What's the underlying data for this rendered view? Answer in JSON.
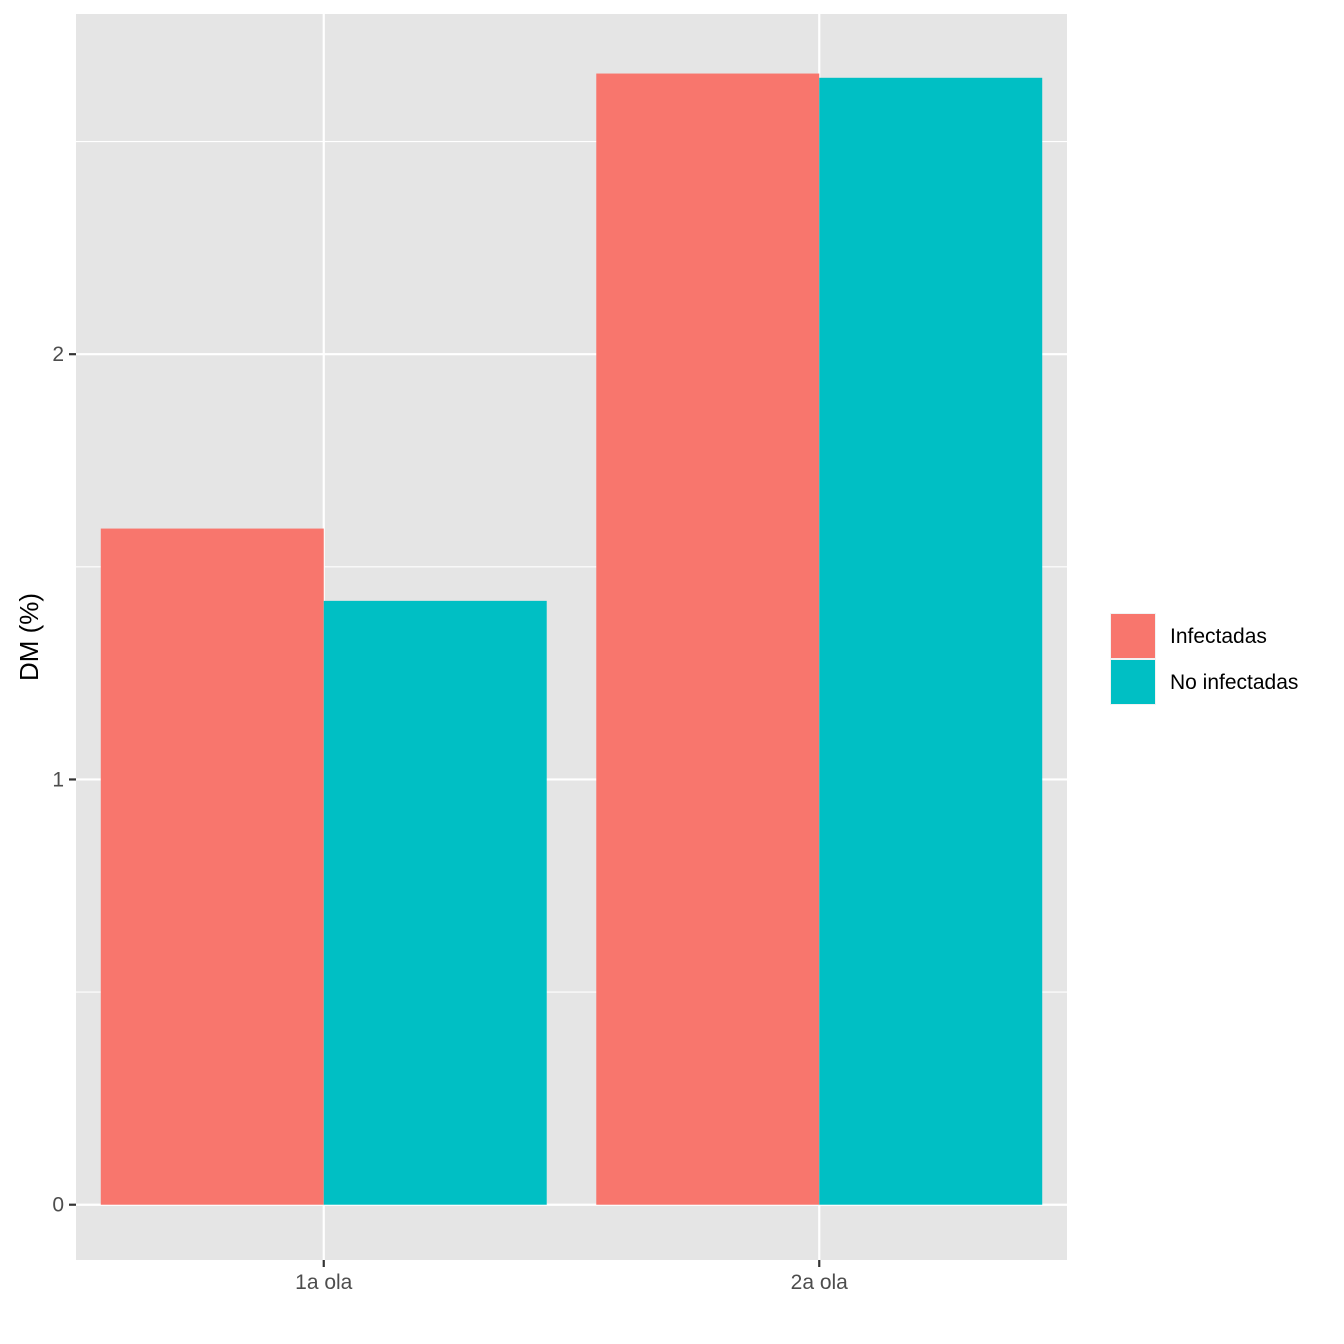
{
  "chart_data": {
    "type": "bar",
    "title": "",
    "xlabel": "",
    "ylabel": "DM (%)",
    "categories": [
      "1a ola",
      "2a ola"
    ],
    "series": [
      {
        "name": "Infectadas",
        "color": "#F8766D",
        "values": [
          1.59,
          2.66
        ]
      },
      {
        "name": "No infectadas",
        "color": "#00BFC4",
        "values": [
          1.42,
          2.65
        ]
      }
    ],
    "ylim": [
      -0.13,
      2.8
    ],
    "yticks": [
      0,
      1,
      2
    ],
    "yticks_minor": [
      0.5,
      1.5,
      2.5
    ],
    "grid": true,
    "legend_position": "right",
    "colors": {
      "panel_background": "#E5E5E5",
      "grid_line": "#FFFFFF",
      "tick_text": "#4D4D4D",
      "tick_mark": "#333333"
    }
  }
}
